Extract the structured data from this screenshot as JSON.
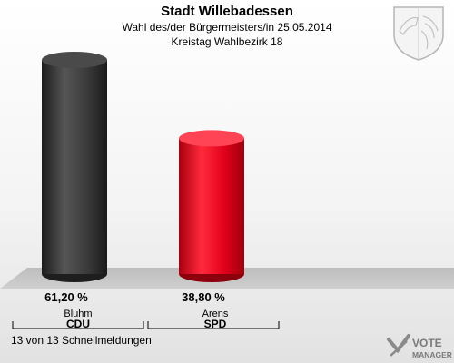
{
  "header": {
    "title": "Stadt Willebadessen",
    "subtitle": "Wahl des/der Bürgermeisters/in  25.05.2014",
    "district": "Kreistag Wahlbezirk 18"
  },
  "footer": {
    "status": "13 von 13 Schnellmeldungen"
  },
  "logo": {
    "line1": "VOTE",
    "line2": "MANAGER"
  },
  "chart_data": {
    "type": "bar",
    "categories": [
      "Bluhm|CDU",
      "Arens|SPD"
    ],
    "candidates": [
      "Bluhm",
      "Arens"
    ],
    "parties": [
      "CDU",
      "SPD"
    ],
    "values": [
      61.2,
      38.8
    ],
    "value_labels": [
      "61,20 %",
      "38,80 %"
    ],
    "colors": [
      "#3a3a3a",
      "#e2001a"
    ],
    "ylim": [
      0,
      61.2
    ],
    "grid": false
  }
}
